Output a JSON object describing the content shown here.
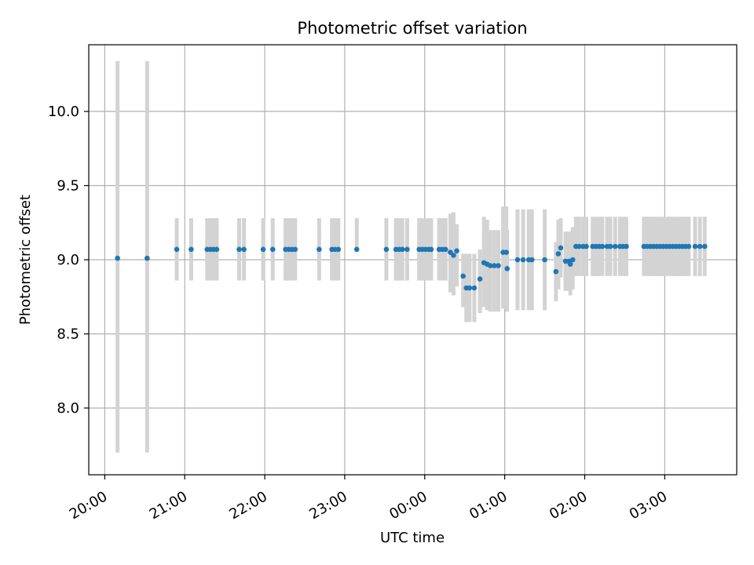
{
  "chart_data": {
    "type": "scatter",
    "title": "Photometric offset variation",
    "xlabel": "UTC time",
    "ylabel": "Photometric offset",
    "grid": true,
    "legend": "none",
    "x_unit": "hours (UTC); values >= 24 are times after 00:00 of the next day",
    "xlim": [
      19.8,
      27.9
    ],
    "ylim": [
      7.55,
      10.45
    ],
    "x_ticks": [
      20,
      21,
      22,
      23,
      24,
      25,
      26,
      27
    ],
    "x_tick_labels": [
      "20:00",
      "21:00",
      "22:00",
      "23:00",
      "00:00",
      "01:00",
      "02:00",
      "03:00"
    ],
    "y_ticks": [
      8.0,
      8.5,
      9.0,
      9.5,
      10.0
    ],
    "y_tick_labels": [
      "8.0",
      "8.5",
      "9.0",
      "9.5",
      "10.0"
    ],
    "colors": {
      "points": "#1f77b4",
      "error_bars": "#d3d3d3",
      "grid": "#b0b0b0"
    },
    "series": [
      {
        "x": [
          20.16,
          20.53,
          20.9,
          21.08,
          21.28,
          21.32,
          21.36,
          21.4,
          21.68,
          21.74,
          21.98,
          22.1,
          22.26,
          22.3,
          22.34,
          22.38,
          22.68,
          22.84,
          22.88,
          22.92,
          23.15,
          23.52,
          23.64,
          23.68,
          23.72,
          23.78,
          23.93,
          23.97,
          24.01,
          24.05,
          24.08,
          24.18,
          24.22,
          24.26,
          24.32,
          24.36,
          24.4,
          24.48,
          24.52,
          24.56,
          24.62,
          24.69,
          24.74,
          24.78,
          24.82,
          24.87,
          24.92,
          24.98,
          25.02,
          25.03,
          25.16,
          25.23,
          25.3,
          25.34,
          25.5,
          25.64,
          25.67,
          25.7,
          25.76,
          25.8,
          25.82,
          25.85,
          25.89,
          25.93,
          25.98,
          26.02,
          26.1,
          26.14,
          26.18,
          26.22,
          26.28,
          26.32,
          26.38,
          26.44,
          26.48,
          26.52,
          26.74,
          26.78,
          26.82,
          26.86,
          26.9,
          26.94,
          26.98,
          27.02,
          27.06,
          27.1,
          27.14,
          27.18,
          27.22,
          27.26,
          27.3,
          27.38,
          27.44,
          27.5
        ],
        "y": [
          9.01,
          9.01,
          9.07,
          9.07,
          9.07,
          9.07,
          9.07,
          9.07,
          9.07,
          9.07,
          9.07,
          9.07,
          9.07,
          9.07,
          9.07,
          9.07,
          9.07,
          9.07,
          9.07,
          9.07,
          9.07,
          9.07,
          9.07,
          9.07,
          9.07,
          9.07,
          9.07,
          9.07,
          9.07,
          9.07,
          9.07,
          9.07,
          9.07,
          9.07,
          9.05,
          9.03,
          9.06,
          8.89,
          8.81,
          8.81,
          8.81,
          8.87,
          8.98,
          8.97,
          8.96,
          8.96,
          8.96,
          9.05,
          9.05,
          8.94,
          9.0,
          9.0,
          9.0,
          9.0,
          9.0,
          8.92,
          9.04,
          9.08,
          8.99,
          8.99,
          8.97,
          9.0,
          9.09,
          9.09,
          9.09,
          9.09,
          9.09,
          9.09,
          9.09,
          9.09,
          9.09,
          9.09,
          9.09,
          9.09,
          9.09,
          9.09,
          9.09,
          9.09,
          9.09,
          9.09,
          9.09,
          9.09,
          9.09,
          9.09,
          9.09,
          9.09,
          9.09,
          9.09,
          9.09,
          9.09,
          9.09,
          9.09,
          9.09,
          9.09
        ],
        "y_low": [
          7.7,
          7.7,
          8.86,
          8.86,
          8.86,
          8.86,
          8.86,
          8.86,
          8.86,
          8.86,
          8.86,
          8.86,
          8.86,
          8.86,
          8.86,
          8.86,
          8.86,
          8.86,
          8.86,
          8.86,
          9.07,
          8.86,
          8.86,
          8.86,
          8.86,
          8.86,
          8.86,
          8.86,
          8.86,
          8.86,
          8.86,
          8.86,
          8.86,
          8.86,
          8.78,
          8.76,
          8.82,
          8.68,
          8.58,
          8.58,
          8.58,
          8.64,
          8.68,
          8.66,
          8.65,
          8.65,
          8.65,
          8.67,
          8.67,
          8.65,
          8.66,
          8.66,
          8.66,
          8.66,
          8.66,
          8.72,
          8.8,
          8.88,
          8.79,
          8.79,
          8.76,
          8.8,
          8.89,
          8.89,
          8.89,
          8.89,
          8.89,
          8.89,
          8.89,
          8.89,
          8.89,
          8.89,
          8.89,
          8.89,
          8.89,
          8.89,
          8.89,
          8.89,
          8.89,
          8.89,
          8.89,
          8.89,
          8.89,
          8.89,
          8.89,
          8.89,
          8.89,
          8.89,
          8.89,
          8.89,
          8.89,
          8.89,
          8.89,
          8.89
        ],
        "y_high": [
          10.34,
          10.34,
          9.28,
          9.28,
          9.28,
          9.28,
          9.28,
          9.28,
          9.28,
          9.28,
          9.28,
          9.28,
          9.28,
          9.28,
          9.28,
          9.28,
          9.28,
          9.28,
          9.28,
          9.28,
          9.28,
          9.28,
          9.28,
          9.28,
          9.28,
          9.28,
          9.28,
          9.28,
          9.28,
          9.28,
          9.28,
          9.28,
          9.28,
          9.28,
          9.31,
          9.32,
          9.24,
          9.04,
          9.04,
          9.04,
          9.04,
          9.07,
          9.29,
          9.27,
          9.2,
          9.2,
          9.2,
          9.36,
          9.36,
          9.2,
          9.34,
          9.34,
          9.34,
          9.34,
          9.34,
          9.12,
          9.27,
          9.28,
          9.19,
          9.19,
          9.18,
          9.22,
          9.29,
          9.29,
          9.29,
          9.29,
          9.29,
          9.29,
          9.29,
          9.29,
          9.29,
          9.29,
          9.29,
          9.29,
          9.29,
          9.29,
          9.29,
          9.29,
          9.29,
          9.29,
          9.29,
          9.29,
          9.29,
          9.29,
          9.29,
          9.29,
          9.29,
          9.29,
          9.29,
          9.29,
          9.29,
          9.29,
          9.29,
          9.29
        ]
      }
    ]
  }
}
